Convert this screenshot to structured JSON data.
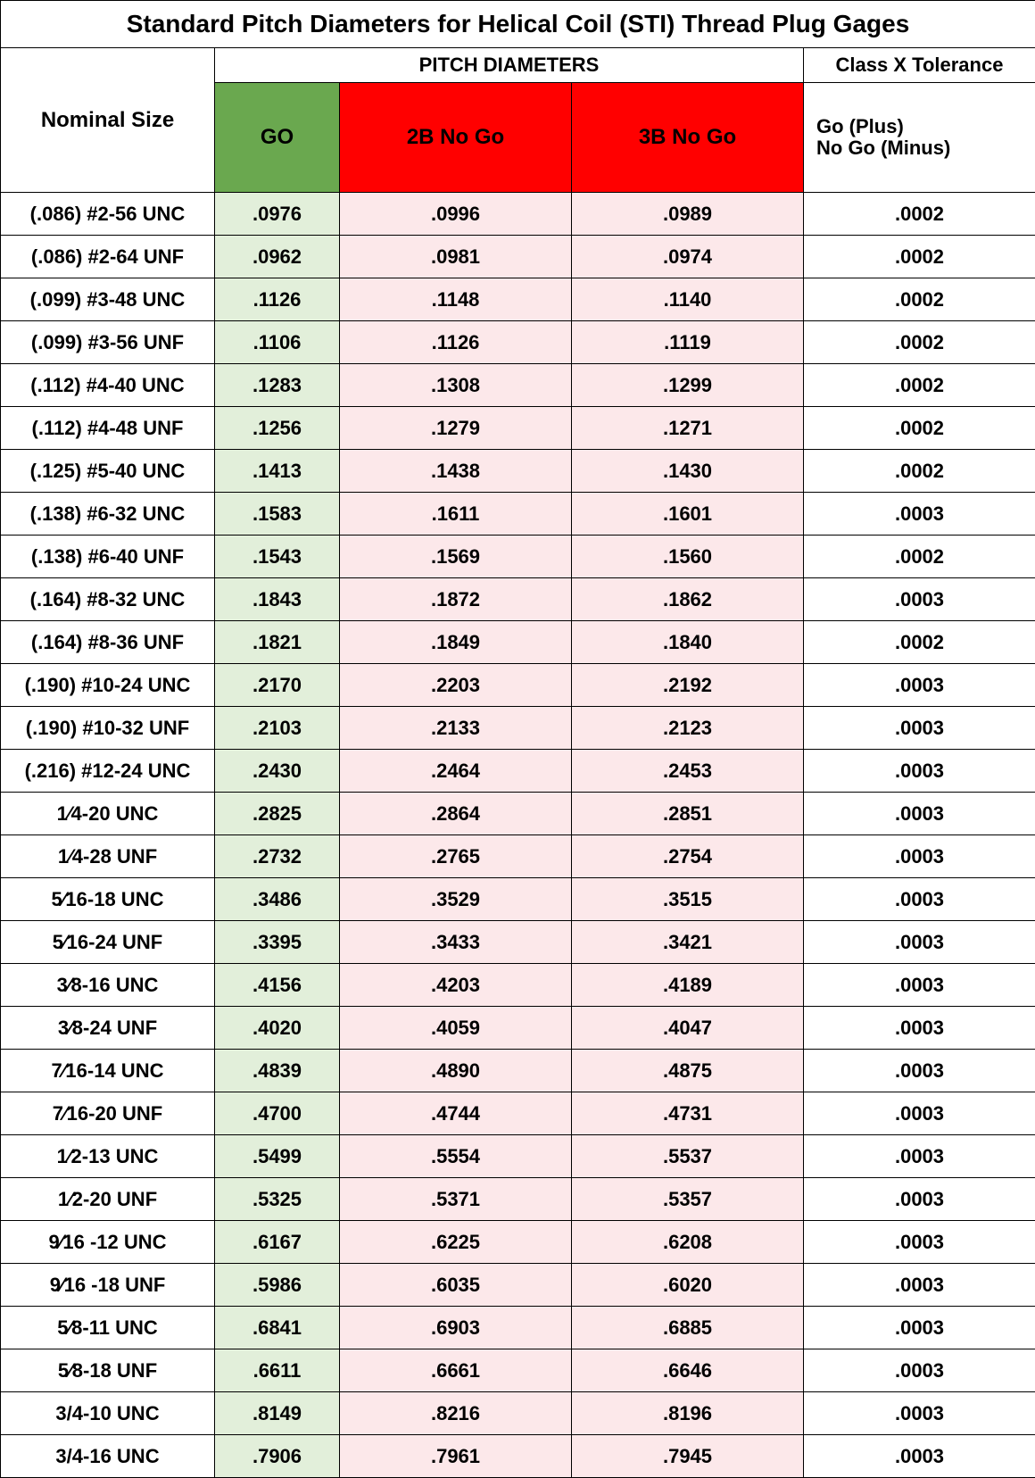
{
  "title": "Standard Pitch Diameters for Helical Coil (STI) Thread Plug Gages",
  "headers": {
    "pitch": "PITCH DIAMETERS",
    "classx": "Class X Tolerance",
    "nominal": "Nominal Size",
    "go": "GO",
    "nogo2b": "2B No Go",
    "nogo3b": "3B No Go",
    "tol_line1": "Go (Plus)",
    "tol_line2": "No Go (Minus)"
  },
  "colors": {
    "go_bg": "#6aa84f",
    "nogo_bg": "#ff0000",
    "go_cell_bg": "#e2efda",
    "nogo_cell_bg": "#fce8ea",
    "border": "#000000"
  },
  "columns": [
    "Nominal Size",
    "GO",
    "2B No Go",
    "3B No Go",
    "Class X Tolerance"
  ],
  "rows": [
    {
      "nom": "(.086) #2-56 UNC",
      "go": ".0976",
      "n2b": ".0996",
      "n3b": ".0989",
      "tol": ".0002"
    },
    {
      "nom": "(.086) #2-64 UNF",
      "go": ".0962",
      "n2b": ".0981",
      "n3b": ".0974",
      "tol": ".0002"
    },
    {
      "nom": "(.099) #3-48 UNC",
      "go": ".1126",
      "n2b": ".1148",
      "n3b": ".1140",
      "tol": ".0002"
    },
    {
      "nom": "(.099) #3-56 UNF",
      "go": ".1106",
      "n2b": ".1126",
      "n3b": ".1119",
      "tol": ".0002"
    },
    {
      "nom": "(.112) #4-40 UNC",
      "go": ".1283",
      "n2b": ".1308",
      "n3b": ".1299",
      "tol": ".0002"
    },
    {
      "nom": "(.112) #4-48 UNF",
      "go": ".1256",
      "n2b": ".1279",
      "n3b": ".1271",
      "tol": ".0002"
    },
    {
      "nom": "(.125) #5-40 UNC",
      "go": ".1413",
      "n2b": ".1438",
      "n3b": ".1430",
      "tol": ".0002"
    },
    {
      "nom": "(.138) #6-32 UNC",
      "go": ".1583",
      "n2b": ".1611",
      "n3b": ".1601",
      "tol": ".0003"
    },
    {
      "nom": "(.138) #6-40 UNF",
      "go": ".1543",
      "n2b": ".1569",
      "n3b": ".1560",
      "tol": ".0002"
    },
    {
      "nom": "(.164) #8-32 UNC",
      "go": ".1843",
      "n2b": ".1872",
      "n3b": ".1862",
      "tol": ".0003"
    },
    {
      "nom": "(.164) #8-36 UNF",
      "go": ".1821",
      "n2b": ".1849",
      "n3b": ".1840",
      "tol": ".0002"
    },
    {
      "nom": "(.190) #10-24 UNC",
      "go": ".2170",
      "n2b": ".2203",
      "n3b": ".2192",
      "tol": ".0003"
    },
    {
      "nom": "(.190) #10-32 UNF",
      "go": ".2103",
      "n2b": ".2133",
      "n3b": ".2123",
      "tol": ".0003"
    },
    {
      "nom": "(.216) #12-24 UNC",
      "go": ".2430",
      "n2b": ".2464",
      "n3b": ".2453",
      "tol": ".0003"
    },
    {
      "nom": "1⁄4-20 UNC",
      "go": ".2825",
      "n2b": ".2864",
      "n3b": ".2851",
      "tol": ".0003"
    },
    {
      "nom": "1⁄4-28 UNF",
      "go": ".2732",
      "n2b": ".2765",
      "n3b": ".2754",
      "tol": ".0003"
    },
    {
      "nom": "5⁄16-18 UNC",
      "go": ".3486",
      "n2b": ".3529",
      "n3b": ".3515",
      "tol": ".0003"
    },
    {
      "nom": "5⁄16-24 UNF",
      "go": ".3395",
      "n2b": ".3433",
      "n3b": ".3421",
      "tol": ".0003"
    },
    {
      "nom": "3⁄8-16 UNC",
      "go": ".4156",
      "n2b": ".4203",
      "n3b": ".4189",
      "tol": ".0003"
    },
    {
      "nom": "3⁄8-24 UNF",
      "go": ".4020",
      "n2b": ".4059",
      "n3b": ".4047",
      "tol": ".0003"
    },
    {
      "nom": "7⁄16-14 UNC",
      "go": ".4839",
      "n2b": ".4890",
      "n3b": ".4875",
      "tol": ".0003"
    },
    {
      "nom": "7⁄16-20 UNF",
      "go": ".4700",
      "n2b": ".4744",
      "n3b": ".4731",
      "tol": ".0003"
    },
    {
      "nom": "1⁄2-13 UNC",
      "go": ".5499",
      "n2b": ".5554",
      "n3b": ".5537",
      "tol": ".0003"
    },
    {
      "nom": "1⁄2-20 UNF",
      "go": ".5325",
      "n2b": ".5371",
      "n3b": ".5357",
      "tol": ".0003"
    },
    {
      "nom": "9⁄16 -12 UNC",
      "go": ".6167",
      "n2b": ".6225",
      "n3b": ".6208",
      "tol": ".0003"
    },
    {
      "nom": "9⁄16 -18 UNF",
      "go": ".5986",
      "n2b": ".6035",
      "n3b": ".6020",
      "tol": ".0003"
    },
    {
      "nom": "5⁄8-11 UNC",
      "go": ".6841",
      "n2b": ".6903",
      "n3b": ".6885",
      "tol": ".0003"
    },
    {
      "nom": "5⁄8-18 UNF",
      "go": ".6611",
      "n2b": ".6661",
      "n3b": ".6646",
      "tol": ".0003"
    },
    {
      "nom": "3/4-10 UNC",
      "go": ".8149",
      "n2b": ".8216",
      "n3b": ".8196",
      "tol": ".0003"
    },
    {
      "nom": "3/4-16 UNC",
      "go": ".7906",
      "n2b": ".7961",
      "n3b": ".7945",
      "tol": ".0003"
    }
  ]
}
